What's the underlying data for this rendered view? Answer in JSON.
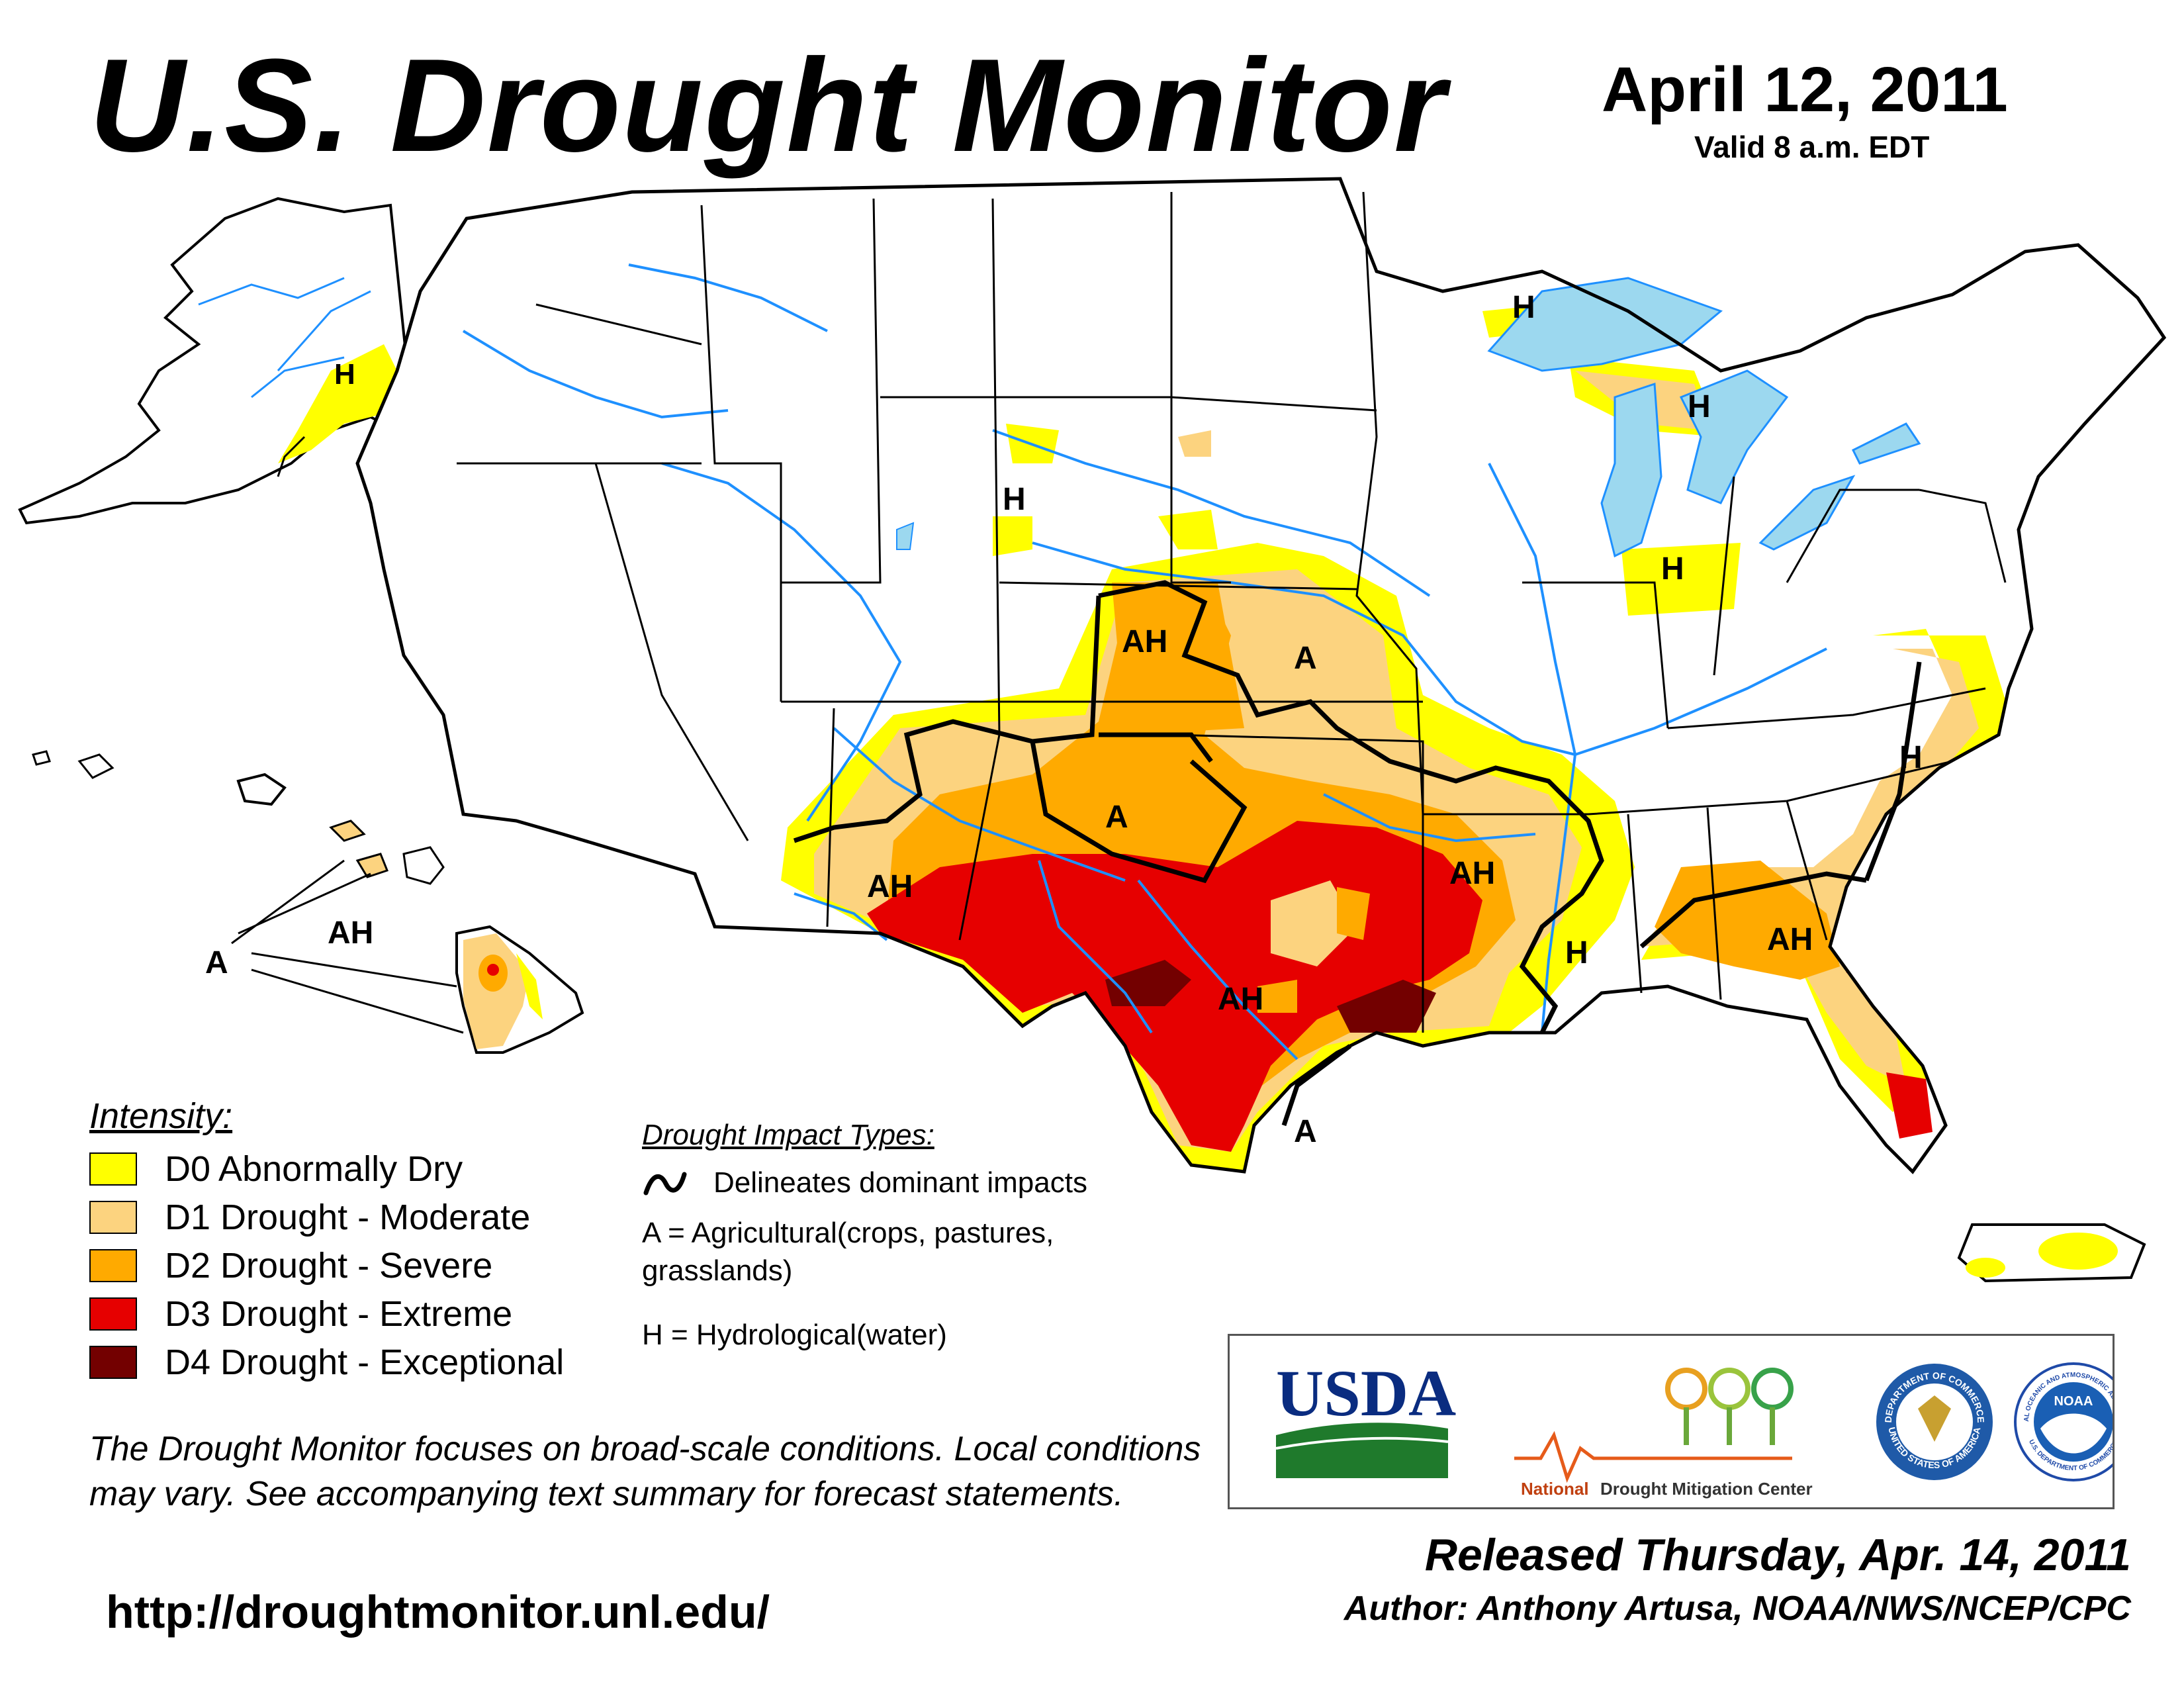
{
  "header": {
    "title": "U.S. Drought Monitor",
    "date": "April 12, 2011",
    "valid": "Valid 8 a.m. EDT"
  },
  "legend": {
    "title": "Intensity:",
    "items": [
      {
        "label": "D0 Abnormally Dry",
        "color": "#ffff00"
      },
      {
        "label": "D1 Drought - Moderate",
        "color": "#fcd37f"
      },
      {
        "label": "D2 Drought - Severe",
        "color": "#ffaa00"
      },
      {
        "label": "D3 Drought - Extreme",
        "color": "#e60000"
      },
      {
        "label": "D4 Drought - Exceptional",
        "color": "#730000"
      }
    ]
  },
  "impact_types": {
    "title": "Drought Impact Types:",
    "delineates": "Delineates dominant impacts",
    "agricultural": "A = Agricultural(crops, pastures, grasslands)",
    "hydrological": "H = Hydrological(water)"
  },
  "map_labels": {
    "ah": "AH",
    "a": "A",
    "h": "H"
  },
  "colors": {
    "water": "#9cd8ef",
    "rivers": "#1e90ff",
    "county_lines": "#a0a0a0",
    "state_lines": "#000000"
  },
  "disclaimer": "The Drought Monitor focuses on broad-scale conditions. Local conditions may vary. See accompanying text summary for forecast statements.",
  "url": "http://droughtmonitor.unl.edu/",
  "logos": {
    "usda": "USDA",
    "ndmc_national": "National",
    "ndmc_rest": "Drought Mitigation Center",
    "noaa": "NOAA",
    "doc_ring_top": "DEPARTMENT OF COMMERCE",
    "doc_ring_bottom": "UNITED STATES OF AMERICA",
    "noaa_ring_top": "NATIONAL OCEANIC AND ATMOSPHERIC ADMINISTRATION",
    "noaa_ring_bottom": "U.S. DEPARTMENT OF COMMERCE"
  },
  "released": "Released Thursday, Apr. 14, 2011",
  "author": "Author: Anthony Artusa, NOAA/NWS/NCEP/CPC"
}
